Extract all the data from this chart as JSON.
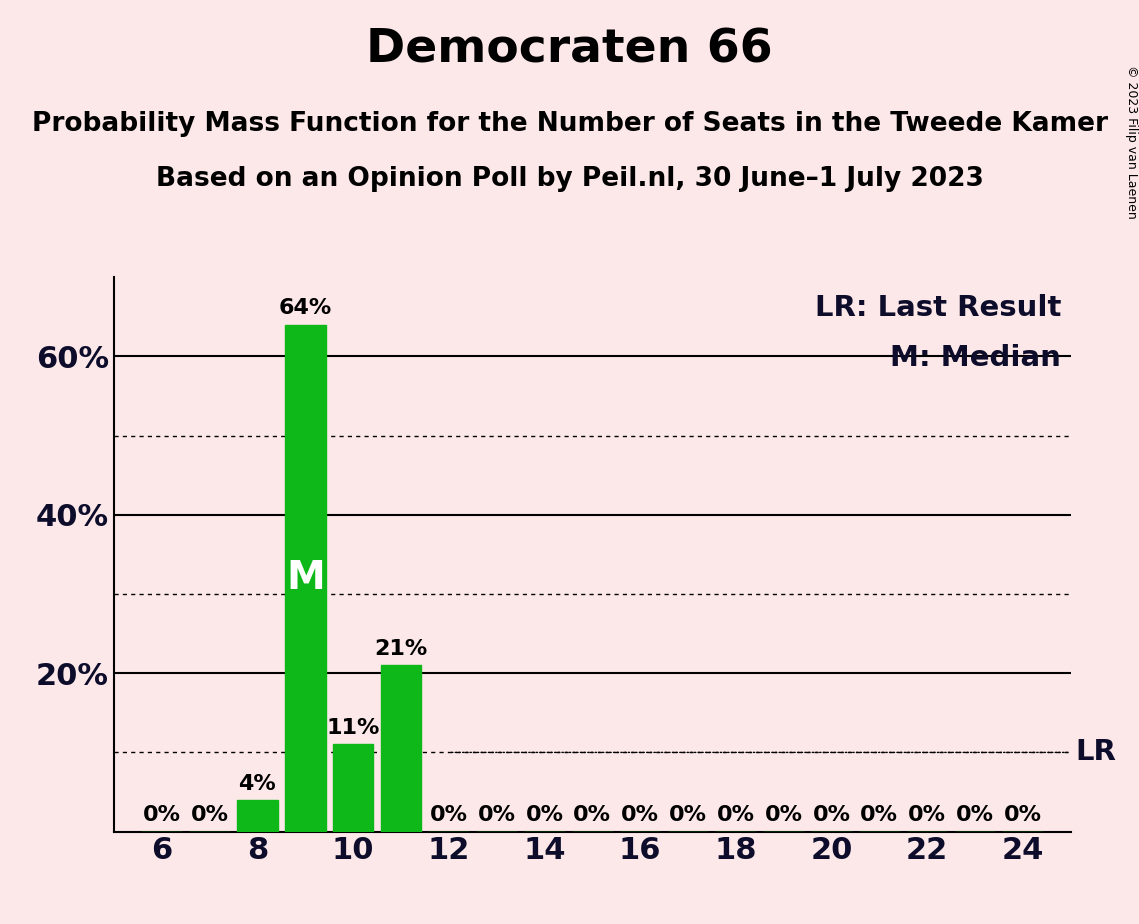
{
  "title": "Democraten 66",
  "subtitle1": "Probability Mass Function for the Number of Seats in the Tweede Kamer",
  "subtitle2": "Based on an Opinion Poll by Peil.nl, 30 June–1 July 2023",
  "copyright": "© 2023 Filip van Laenen",
  "background_color": "#fce8e8",
  "bar_color": "#0db818",
  "seats": [
    6,
    7,
    8,
    9,
    10,
    11,
    12,
    13,
    14,
    15,
    16,
    17,
    18,
    19,
    20,
    21,
    22,
    23,
    24
  ],
  "probabilities": [
    0,
    0,
    4,
    64,
    11,
    21,
    0,
    0,
    0,
    0,
    0,
    0,
    0,
    0,
    0,
    0,
    0,
    0,
    0
  ],
  "median_seat": 9,
  "lr_value": 10,
  "ylim": [
    0,
    70
  ],
  "solid_lines": [
    20,
    40,
    60
  ],
  "dotted_lines": [
    10,
    30,
    50
  ],
  "title_fontsize": 34,
  "subtitle_fontsize": 19,
  "axis_tick_fontsize": 22,
  "bar_label_fontsize": 16,
  "legend_fontsize": 21,
  "copyright_fontsize": 9,
  "lr_label_fontsize": 21
}
